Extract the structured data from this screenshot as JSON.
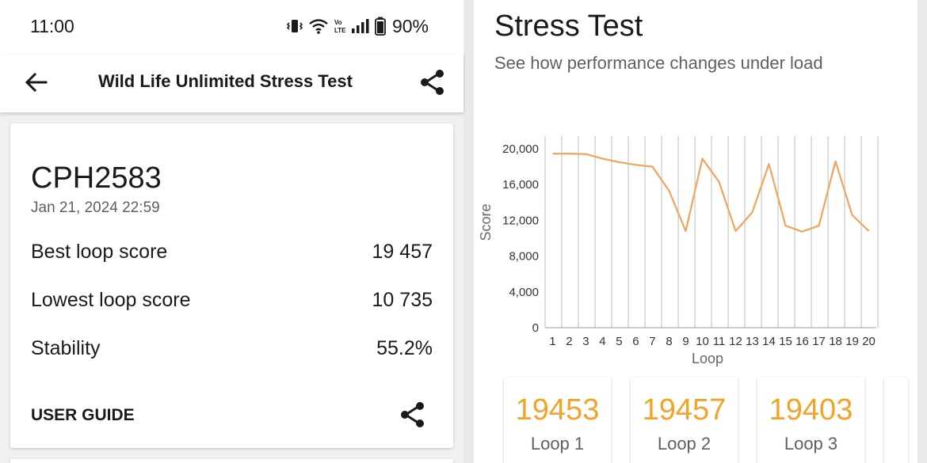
{
  "status_bar": {
    "time": "11:00",
    "battery": "90%"
  },
  "app_bar": {
    "title": "Wild Life Unlimited Stress Test"
  },
  "result_card": {
    "device": "CPH2583",
    "date": "Jan 21, 2024 22:59",
    "stats": [
      {
        "label": "Best loop score",
        "value": "19 457"
      },
      {
        "label": "Lowest loop score",
        "value": "10 735"
      },
      {
        "label": "Stability",
        "value": "55.2%"
      }
    ],
    "user_guide": "USER GUIDE"
  },
  "stress_test": {
    "title": "Stress Test",
    "subtitle": "See how performance changes under load"
  },
  "chart_data": {
    "type": "line",
    "xlabel": "Loop",
    "ylabel": "Score",
    "x": [
      1,
      2,
      3,
      4,
      5,
      6,
      7,
      8,
      9,
      10,
      11,
      12,
      13,
      14,
      15,
      16,
      17,
      18,
      19,
      20
    ],
    "ylim": [
      0,
      20000
    ],
    "yticks": [
      "0",
      "4,000",
      "8,000",
      "12,000",
      "16,000",
      "20,000"
    ],
    "ytick_values": [
      0,
      4000,
      8000,
      12000,
      16000,
      20000
    ],
    "series": [
      {
        "values": [
          19453,
          19457,
          19403,
          18900,
          18500,
          18200,
          18000,
          15300,
          10800,
          18900,
          16300,
          10800,
          12900,
          18300,
          11400,
          10735,
          11400,
          18600,
          12600,
          10800
        ]
      }
    ],
    "grid": true,
    "line_color": "#f0a45c"
  },
  "loop_cards": [
    {
      "value": "19453",
      "label": "Loop 1"
    },
    {
      "value": "19457",
      "label": "Loop 2"
    },
    {
      "value": "19403",
      "label": "Loop 3"
    }
  ],
  "colors": {
    "accent": "#f2a42a",
    "line": "#f0a45c"
  }
}
